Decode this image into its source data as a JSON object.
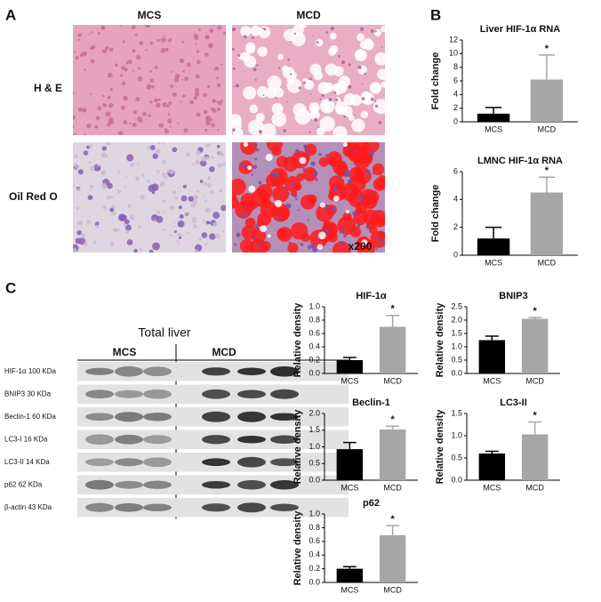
{
  "panel_labels": [
    "A",
    "B",
    "C"
  ],
  "micrographs": {
    "columns": [
      "MCS",
      "MCD"
    ],
    "rows": [
      "H & E",
      "Oil Red O"
    ],
    "magnification": "x200"
  },
  "blot": {
    "title": "Total liver",
    "groups": [
      "MCS",
      "MCD"
    ],
    "rows": [
      "HIF-1α 100 KDa",
      "BNIP3 30 KDa",
      "Beclin-1 60 KDa",
      "LC3-I 16 KDa",
      "LC3-II 14 KDa",
      "p62 62 KDa",
      "β-actin 43 KDa"
    ]
  },
  "chart_data": [
    {
      "type": "bar",
      "title": "Liver HIF-1α RNA",
      "y_label": "Fold change",
      "categories": [
        "MCS",
        "MCD"
      ],
      "values": [
        1.2,
        6.2
      ],
      "errors": [
        0.9,
        3.6
      ],
      "colors": [
        "#000000",
        "#a6a6a6"
      ],
      "annotation": "*",
      "ylim": [
        0,
        12
      ],
      "yticks": [
        0,
        2,
        4,
        6,
        8,
        10,
        12
      ]
    },
    {
      "type": "bar",
      "title": "LMNC HIF-1α RNA",
      "y_label": "Fold change",
      "categories": [
        "MCS",
        "MCD"
      ],
      "values": [
        1.2,
        4.5
      ],
      "errors": [
        0.8,
        1.1
      ],
      "colors": [
        "#000000",
        "#a6a6a6"
      ],
      "annotation": "*",
      "ylim": [
        0,
        6
      ],
      "yticks": [
        0,
        2,
        4,
        6
      ]
    },
    {
      "type": "bar",
      "title": "HIF-1α",
      "y_label": "Relative density",
      "categories": [
        "MCS",
        "MCD"
      ],
      "values": [
        0.2,
        0.7
      ],
      "errors": [
        0.04,
        0.17
      ],
      "colors": [
        "#000000",
        "#a6a6a6"
      ],
      "annotation": "*",
      "ylim": [
        0,
        1.0
      ],
      "yticks": [
        {
          "value": 0,
          "label": "0.0"
        },
        0.2,
        0.4,
        0.6,
        0.8,
        {
          "value": 1,
          "label": "1.0"
        }
      ]
    },
    {
      "type": "bar",
      "title": "BNIP3",
      "y_label": "Relative density",
      "categories": [
        "MCS",
        "MCD"
      ],
      "values": [
        1.25,
        2.05
      ],
      "errors": [
        0.15,
        0.05
      ],
      "colors": [
        "#000000",
        "#a6a6a6"
      ],
      "annotation": "*",
      "ylim": [
        0,
        2.5
      ],
      "yticks": [
        {
          "value": 0,
          "label": "0.0"
        },
        0.5,
        {
          "value": 1,
          "label": "1.0"
        },
        1.5,
        {
          "value": 2,
          "label": "2.0"
        },
        2.5
      ]
    },
    {
      "type": "bar",
      "title": "Beclin-1",
      "y_label": "Relative density",
      "categories": [
        "MCS",
        "MCD"
      ],
      "values": [
        0.93,
        1.52
      ],
      "errors": [
        0.2,
        0.1
      ],
      "colors": [
        "#000000",
        "#a6a6a6"
      ],
      "annotation": "*",
      "ylim": [
        0,
        2.0
      ],
      "yticks": [
        {
          "value": 0,
          "label": "0.0"
        },
        0.5,
        {
          "value": 1,
          "label": "1.0"
        },
        1.5,
        {
          "value": 2,
          "label": "2.0"
        }
      ]
    },
    {
      "type": "bar",
      "title": "LC3-II",
      "y_label": "Relative density",
      "categories": [
        "MCS",
        "MCD"
      ],
      "values": [
        0.6,
        1.03
      ],
      "errors": [
        0.05,
        0.28
      ],
      "colors": [
        "#000000",
        "#a6a6a6"
      ],
      "annotation": "*",
      "ylim": [
        0,
        1.5
      ],
      "yticks": [
        {
          "value": 0,
          "label": "0.0"
        },
        0.5,
        {
          "value": 1,
          "label": "1.0"
        },
        1.5
      ]
    },
    {
      "type": "bar",
      "title": "p62",
      "y_label": "Relative density",
      "categories": [
        "MCS",
        "MCD"
      ],
      "values": [
        0.2,
        0.69
      ],
      "errors": [
        0.03,
        0.14
      ],
      "colors": [
        "#000000",
        "#a6a6a6"
      ],
      "annotation": "*",
      "ylim": [
        0,
        1.0
      ],
      "yticks": [
        {
          "value": 0,
          "label": "0.0"
        },
        0.2,
        0.4,
        0.6,
        0.8,
        {
          "value": 1,
          "label": "1.0"
        }
      ]
    }
  ]
}
